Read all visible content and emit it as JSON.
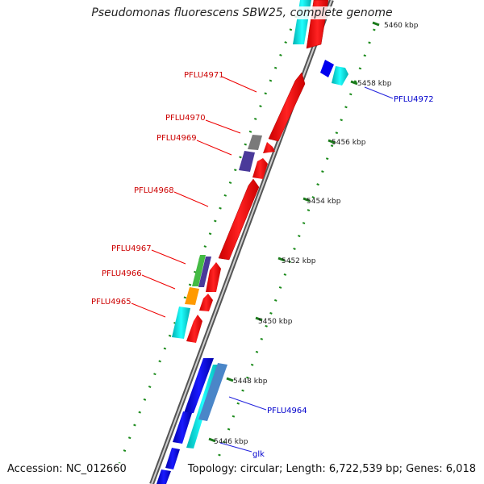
{
  "title": "Pseudomonas fluorescens SBW25, complete genome",
  "accession": "Accession: NC_012660",
  "summary": "Topology: circular; Length: 6,722,539 bp; Genes: 6,018",
  "ticks": [
    {
      "label": "5460 kbp",
      "kbp": 5460
    },
    {
      "label": "5458 kbp",
      "kbp": 5458
    },
    {
      "label": "5456 kbp",
      "kbp": 5456
    },
    {
      "label": "5454 kbp",
      "kbp": 5454
    },
    {
      "label": "5452 kbp",
      "kbp": 5452
    },
    {
      "label": "5450 kbp",
      "kbp": 5450
    },
    {
      "label": "5448 kbp",
      "kbp": 5448
    },
    {
      "label": "5446 kbp",
      "kbp": 5446
    }
  ],
  "colors": {
    "red": "#ff0000",
    "blue": "#0000ee",
    "cyan": "#00dede",
    "gray": "#808080",
    "purple": "#4a3a9a",
    "green": "#44bb44",
    "orange": "#ff9a00",
    "steel": "#4a86c8",
    "label_red": "#cc0000",
    "label_blue": "#0000cc"
  },
  "genes": [
    {
      "name": "PFLU4971",
      "strand": "minus",
      "color": "red"
    },
    {
      "name": "PFLU4970",
      "strand": "minus",
      "color": "red"
    },
    {
      "name": "PFLU4969",
      "strand": "minus",
      "color": "red"
    },
    {
      "name": "PFLU4968",
      "strand": "minus",
      "color": "red"
    },
    {
      "name": "PFLU4967",
      "strand": "minus",
      "color": "red"
    },
    {
      "name": "PFLU4966",
      "strand": "minus",
      "color": "red"
    },
    {
      "name": "PFLU4965",
      "strand": "minus",
      "color": "red"
    },
    {
      "name": "PFLU4972",
      "strand": "plus",
      "color": "blue"
    },
    {
      "name": "PFLU4964",
      "strand": "plus",
      "color": "blue"
    },
    {
      "name": "glk",
      "strand": "plus",
      "color": "blue"
    }
  ]
}
